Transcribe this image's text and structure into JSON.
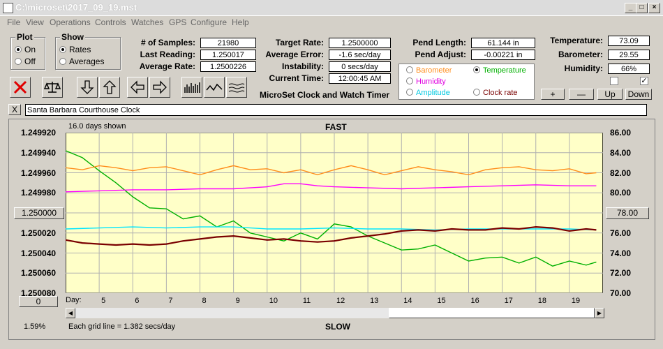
{
  "window": {
    "title": "C:\\microset\\2017_09_19.mst"
  },
  "menu": [
    "File",
    "View",
    "Operations",
    "Controls",
    "Watches",
    "GPS",
    "Configure",
    "Help"
  ],
  "plot_group": {
    "title": "Plot",
    "on": "On",
    "off": "Off",
    "selected": "On"
  },
  "show_group": {
    "title": "Show",
    "rates": "Rates",
    "averages": "Averages",
    "selected": "Rates"
  },
  "stats": {
    "samples_label": "# of Samples:",
    "samples": "21980",
    "last_label": "Last Reading:",
    "last": "1.250017",
    "avgrate_label": "Average Rate:",
    "avgrate": "1.2500226",
    "target_label": "Target Rate:",
    "target": "1.2500000",
    "avgerr_label": "Average Error:",
    "avgerr": "-1.6 sec/day",
    "instab_label": "Instability:",
    "instab": "0 secs/day",
    "time_label": "Current Time:",
    "time": "12:00:45 AM",
    "pendlen_label": "Pend Length:",
    "pendlen": "61.144 in",
    "pendadj_label": "Pend Adjust:",
    "pendadj": "-0.00221 in",
    "temp_label": "Temperature:",
    "temp": "73.09",
    "baro_label": "Barometer:",
    "baro": "29.55",
    "hum_label": "Humidity:",
    "hum": "66%"
  },
  "app_name": "MicroSet Clock and Watch Timer",
  "legend": {
    "barometer": "Barometer",
    "temperature": "Temperature",
    "humidity": "Humidity",
    "amplitude": "Amplitude",
    "clockrate": "Clock rate",
    "selected": "Temperature"
  },
  "adjust_buttons": {
    "plus": "+",
    "minus": "—",
    "up": "Up",
    "down": "Down"
  },
  "clock_name": "Santa Barbara Courthouse Clock",
  "close_x": "X",
  "colors": {
    "barometer": "#ff8c1a",
    "temperature": "#00b000",
    "humidity": "#ff00ff",
    "amplitude": "#00e5ff",
    "clockrate": "#7a0000",
    "plot_bg": "#ffffc8"
  },
  "chart_data": {
    "type": "line",
    "days_shown": "16.0 days shown",
    "top_label": "FAST",
    "bottom_label": "SLOW",
    "grid_note": "Each grid line = 1.382 secs/day",
    "left_axis_ticks": [
      "1.249920",
      "1.249940",
      "1.249960",
      "1.249980",
      "1.250000",
      "1.250020",
      "1.250040",
      "1.250060",
      "1.250080"
    ],
    "right_axis_ticks": [
      "86.00",
      "84.00",
      "82.00",
      "80.00",
      "78.00",
      "76.00",
      "74.00",
      "72.00",
      "70.00"
    ],
    "left_center_button": "1.250000",
    "right_center_button": "78.00",
    "left_bottom_button": "0",
    "corner_percent": "1.59%",
    "x_label": "Day:",
    "days": [
      "5",
      "6",
      "7",
      "8",
      "9",
      "10",
      "11",
      "12",
      "13",
      "14",
      "15",
      "16",
      "17",
      "18",
      "19"
    ],
    "ylim_left": [
      1.24992,
      1.25008
    ],
    "ylim_right": [
      70,
      86
    ],
    "series": [
      {
        "name": "Temperature",
        "color": "temperature",
        "axis": "right",
        "x": [
          4,
          4.5,
          5,
          5.5,
          6,
          6.5,
          7,
          7.5,
          8,
          8.5,
          9,
          9.5,
          10,
          10.5,
          11,
          11.5,
          12,
          12.5,
          13,
          13.5,
          14,
          14.5,
          15,
          15.5,
          16,
          16.5,
          17,
          17.5,
          18,
          18.5,
          19,
          19.5,
          19.8
        ],
        "y": [
          84.2,
          83.5,
          82.2,
          81.0,
          79.6,
          78.5,
          78.4,
          77.4,
          77.7,
          76.6,
          77.2,
          76.0,
          75.6,
          75.2,
          76.0,
          75.4,
          76.9,
          76.6,
          75.7,
          75.0,
          74.3,
          74.4,
          74.8,
          74.0,
          73.2,
          73.5,
          73.6,
          73.0,
          73.6,
          72.7,
          73.2,
          72.8,
          73.1
        ]
      },
      {
        "name": "Barometer",
        "color": "barometer",
        "axis": "left",
        "x": [
          4,
          4.5,
          5,
          5.5,
          6,
          6.5,
          7,
          7.5,
          8,
          8.5,
          9,
          9.5,
          10,
          10.5,
          11,
          11.5,
          12,
          12.5,
          13,
          13.5,
          14,
          14.5,
          15,
          15.5,
          16,
          16.5,
          17,
          17.5,
          18,
          18.5,
          19,
          19.5,
          19.8
        ],
        "y": [
          1.249955,
          1.249957,
          1.249953,
          1.249955,
          1.249958,
          1.249955,
          1.249954,
          1.249958,
          1.249962,
          1.249957,
          1.249953,
          1.249957,
          1.249956,
          1.24996,
          1.249957,
          1.249962,
          1.249957,
          1.249953,
          1.249957,
          1.249962,
          1.249958,
          1.249954,
          1.249957,
          1.249959,
          1.249962,
          1.249957,
          1.249955,
          1.249954,
          1.249957,
          1.249958,
          1.249956,
          1.249961,
          1.24996
        ]
      },
      {
        "name": "Humidity",
        "color": "humidity",
        "axis": "left",
        "x": [
          4,
          5,
          6,
          7,
          8,
          9,
          10,
          10.5,
          11,
          11.5,
          12,
          13,
          14,
          15,
          16,
          17,
          18,
          19,
          19.8
        ],
        "y": [
          1.249979,
          1.249978,
          1.249977,
          1.249977,
          1.249976,
          1.249976,
          1.249974,
          1.249971,
          1.249971,
          1.249973,
          1.249974,
          1.249975,
          1.249976,
          1.249975,
          1.249974,
          1.249973,
          1.249972,
          1.249973,
          1.249973
        ]
      },
      {
        "name": "Amplitude",
        "color": "amplitude",
        "axis": "left",
        "x": [
          4,
          5,
          6,
          7,
          8,
          9,
          10,
          11,
          12,
          13,
          14,
          15,
          16,
          17,
          18,
          19,
          19.8
        ],
        "y": [
          1.250016,
          1.250015,
          1.250014,
          1.250015,
          1.250014,
          1.250014,
          1.250016,
          1.250016,
          1.250015,
          1.250016,
          1.250016,
          1.250017,
          1.250016,
          1.250016,
          1.250016,
          1.250016,
          1.250017
        ]
      },
      {
        "name": "Clock rate",
        "color": "clockrate",
        "axis": "left",
        "x": [
          4,
          4.5,
          5,
          5.5,
          6,
          6.5,
          7,
          7.5,
          8,
          8.5,
          9,
          9.5,
          10,
          10.5,
          11,
          11.5,
          12,
          12.5,
          13,
          13.5,
          14,
          14.5,
          15,
          15.5,
          16,
          16.5,
          17,
          17.5,
          18,
          18.5,
          19,
          19.5,
          19.8
        ],
        "y": [
          1.250027,
          1.25003,
          1.250031,
          1.250032,
          1.250031,
          1.250032,
          1.250031,
          1.250028,
          1.250026,
          1.250024,
          1.250023,
          1.250025,
          1.250027,
          1.250026,
          1.250028,
          1.250029,
          1.250028,
          1.250025,
          1.250023,
          1.250021,
          1.250018,
          1.250017,
          1.250018,
          1.250016,
          1.250017,
          1.250017,
          1.250015,
          1.250016,
          1.250014,
          1.250015,
          1.250018,
          1.250016,
          1.250017
        ]
      }
    ]
  }
}
